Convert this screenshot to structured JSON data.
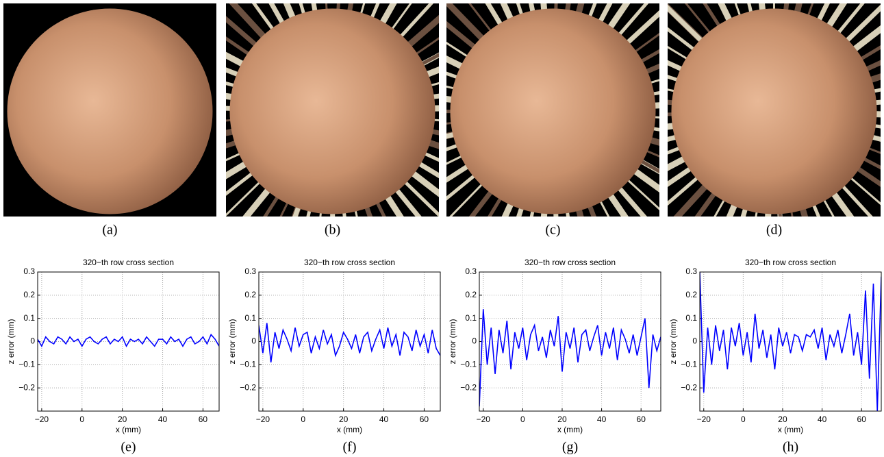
{
  "images": [
    {
      "caption": "(a)"
    },
    {
      "caption": "(b)"
    },
    {
      "caption": "(c)"
    },
    {
      "caption": "(d)"
    }
  ],
  "chart_data": [
    {
      "type": "line",
      "caption": "(e)",
      "title": "320−th row cross section",
      "x_label": "x (mm)",
      "y_label": "z error (mm)",
      "x": [
        -22,
        -20,
        -18,
        -16,
        -14,
        -12,
        -10,
        -8,
        -6,
        -4,
        -2,
        0,
        2,
        4,
        6,
        8,
        10,
        12,
        14,
        16,
        18,
        20,
        22,
        24,
        26,
        28,
        30,
        32,
        34,
        36,
        38,
        40,
        42,
        44,
        46,
        48,
        50,
        52,
        54,
        56,
        58,
        60,
        62,
        64,
        66,
        68
      ],
      "series": [
        {
          "color": "#0000ff",
          "values": [
            0.01,
            -0.02,
            0.02,
            0.0,
            -0.01,
            0.02,
            0.01,
            -0.01,
            0.02,
            0.0,
            0.01,
            -0.02,
            0.01,
            0.02,
            0.0,
            -0.01,
            0.01,
            0.02,
            -0.01,
            0.01,
            0.0,
            0.02,
            -0.02,
            0.01,
            0.0,
            0.01,
            -0.01,
            0.02,
            0.0,
            -0.02,
            0.01,
            0.01,
            -0.01,
            0.02,
            0.0,
            0.01,
            -0.02,
            0.01,
            0.02,
            -0.01,
            0.0,
            0.02,
            -0.01,
            0.03,
            0.01,
            -0.02
          ]
        }
      ],
      "xlim": [
        -22,
        68
      ],
      "ylim": [
        -0.3,
        0.3
      ],
      "xticks": [
        {
          "value": -20,
          "label": "−20"
        },
        0,
        20,
        40,
        60
      ],
      "yticks": [
        {
          "value": -0.2,
          "label": "−0.2"
        },
        {
          "value": -0.1,
          "label": "−0.1"
        },
        0,
        0.1,
        0.2,
        0.3
      ],
      "grid": true
    },
    {
      "type": "line",
      "caption": "(f)",
      "title": "320−th row cross section",
      "x_label": "x (mm)",
      "y_label": "z error (mm)",
      "x": [
        -22,
        -20,
        -18,
        -16,
        -14,
        -12,
        -10,
        -8,
        -6,
        -4,
        -2,
        0,
        2,
        4,
        6,
        8,
        10,
        12,
        14,
        16,
        18,
        20,
        22,
        24,
        26,
        28,
        30,
        32,
        34,
        36,
        38,
        40,
        42,
        44,
        46,
        48,
        50,
        52,
        54,
        56,
        58,
        60,
        62,
        64,
        66,
        68
      ],
      "series": [
        {
          "color": "#0000ff",
          "values": [
            0.07,
            -0.05,
            0.08,
            -0.09,
            0.04,
            -0.03,
            0.05,
            0.01,
            -0.04,
            0.06,
            -0.02,
            0.03,
            0.04,
            -0.05,
            0.02,
            -0.03,
            0.05,
            -0.01,
            0.03,
            -0.06,
            -0.02,
            0.04,
            0.01,
            -0.03,
            0.03,
            -0.05,
            0.02,
            0.04,
            -0.04,
            0.01,
            0.05,
            -0.03,
            0.06,
            -0.02,
            0.03,
            -0.06,
            0.04,
            0.02,
            -0.04,
            0.05,
            -0.02,
            0.03,
            -0.05,
            0.05,
            -0.03,
            -0.06
          ]
        }
      ],
      "xlim": [
        -22,
        68
      ],
      "ylim": [
        -0.3,
        0.3
      ],
      "xticks": [
        {
          "value": -20,
          "label": "−20"
        },
        0,
        20,
        40,
        60
      ],
      "yticks": [
        {
          "value": -0.2,
          "label": "−0.2"
        },
        {
          "value": -0.1,
          "label": "−0.1"
        },
        0,
        0.1,
        0.2,
        0.3
      ],
      "grid": true
    },
    {
      "type": "line",
      "caption": "(g)",
      "title": "320−th row cross section",
      "x_label": "x (mm)",
      "y_label": "z error (mm)",
      "x": [
        -22,
        -20,
        -18,
        -16,
        -14,
        -12,
        -10,
        -8,
        -6,
        -4,
        -2,
        0,
        2,
        4,
        6,
        8,
        10,
        12,
        14,
        16,
        18,
        20,
        22,
        24,
        26,
        28,
        30,
        32,
        34,
        36,
        38,
        40,
        42,
        44,
        46,
        48,
        50,
        52,
        54,
        56,
        58,
        60,
        62,
        64,
        66,
        68,
        70
      ],
      "series": [
        {
          "color": "#0000ff",
          "values": [
            -0.28,
            0.14,
            -0.1,
            0.06,
            -0.14,
            0.05,
            -0.05,
            0.09,
            -0.12,
            0.04,
            -0.03,
            0.06,
            -0.08,
            0.03,
            0.07,
            -0.04,
            0.02,
            -0.07,
            0.05,
            -0.02,
            0.11,
            -0.13,
            0.04,
            -0.03,
            0.06,
            -0.09,
            0.03,
            0.05,
            -0.04,
            0.02,
            0.07,
            -0.06,
            0.04,
            -0.03,
            0.06,
            -0.08,
            0.05,
            0.01,
            -0.05,
            0.03,
            -0.06,
            0.02,
            0.1,
            -0.2,
            0.03,
            -0.04,
            0.02
          ]
        }
      ],
      "xlim": [
        -22,
        70
      ],
      "ylim": [
        -0.3,
        0.3
      ],
      "xticks": [
        {
          "value": -20,
          "label": "−20"
        },
        0,
        20,
        40,
        60
      ],
      "yticks": [
        {
          "value": -0.2,
          "label": "−0.2"
        },
        {
          "value": -0.1,
          "label": "−0.1"
        },
        0,
        0.1,
        0.2,
        0.3
      ],
      "grid": true
    },
    {
      "type": "line",
      "caption": "(h)",
      "title": "320−th row cross section",
      "x_label": "x (mm)",
      "y_label": "z error (mm)",
      "x": [
        -22,
        -20,
        -18,
        -16,
        -14,
        -12,
        -10,
        -8,
        -6,
        -4,
        -2,
        0,
        2,
        4,
        6,
        8,
        10,
        12,
        14,
        16,
        18,
        20,
        22,
        24,
        26,
        28,
        30,
        32,
        34,
        36,
        38,
        40,
        42,
        44,
        46,
        48,
        50,
        52,
        54,
        56,
        58,
        60,
        62,
        64,
        66,
        68,
        70
      ],
      "series": [
        {
          "color": "#0000ff",
          "values": [
            0.3,
            -0.22,
            0.06,
            -0.1,
            0.07,
            -0.04,
            0.05,
            -0.12,
            0.06,
            -0.02,
            0.08,
            -0.06,
            0.04,
            -0.09,
            0.12,
            -0.03,
            0.05,
            -0.07,
            0.03,
            -0.12,
            0.06,
            -0.02,
            0.04,
            -0.05,
            0.03,
            0.02,
            -0.04,
            0.03,
            0.02,
            0.05,
            -0.03,
            0.06,
            -0.08,
            0.03,
            -0.02,
            0.05,
            -0.05,
            0.03,
            0.12,
            -0.06,
            0.04,
            -0.1,
            0.22,
            -0.16,
            0.25,
            -0.3,
            0.28
          ]
        }
      ],
      "xlim": [
        -22,
        70
      ],
      "ylim": [
        -0.3,
        0.3
      ],
      "xticks": [
        {
          "value": -20,
          "label": "−20"
        },
        0,
        20,
        40,
        60
      ],
      "yticks": [
        {
          "value": -0.2,
          "label": "−0.2"
        },
        {
          "value": -0.1,
          "label": "−0.1"
        },
        0,
        0.1,
        0.2,
        0.3
      ],
      "grid": true
    }
  ]
}
